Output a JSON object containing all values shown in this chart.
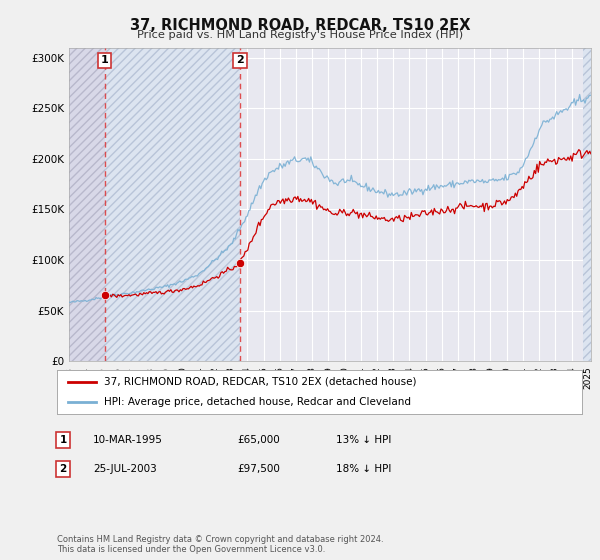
{
  "title": "37, RICHMOND ROAD, REDCAR, TS10 2EX",
  "subtitle": "Price paid vs. HM Land Registry's House Price Index (HPI)",
  "ylim": [
    0,
    310000
  ],
  "yticks": [
    0,
    50000,
    100000,
    150000,
    200000,
    250000,
    300000
  ],
  "ytick_labels": [
    "£0",
    "£50K",
    "£100K",
    "£150K",
    "£200K",
    "£250K",
    "£300K"
  ],
  "sale1_date_num": 1995.2,
  "sale1_price": 65000,
  "sale2_date_num": 2003.55,
  "sale2_price": 97500,
  "house_color": "#cc0000",
  "hpi_color": "#7ab0d4",
  "background_color": "#f0f0f0",
  "plot_bg_color": "#e8e8f0",
  "hatch_region1_color": "#d8d8e8",
  "hatch_region2_color": "#dce4f0",
  "legend_house": "37, RICHMOND ROAD, REDCAR, TS10 2EX (detached house)",
  "legend_hpi": "HPI: Average price, detached house, Redcar and Cleveland",
  "table_row1": [
    "1",
    "10-MAR-1995",
    "£65,000",
    "13% ↓ HPI"
  ],
  "table_row2": [
    "2",
    "25-JUL-2003",
    "£97,500",
    "18% ↓ HPI"
  ],
  "footer": "Contains HM Land Registry data © Crown copyright and database right 2024.\nThis data is licensed under the Open Government Licence v3.0.",
  "xmin": 1993.0,
  "xmax": 2025.2,
  "hpi_anchors": [
    [
      1993.0,
      58000
    ],
    [
      1994.0,
      60000
    ],
    [
      1995.0,
      63000
    ],
    [
      1996.0,
      66000
    ],
    [
      1997.0,
      68000
    ],
    [
      1998.0,
      71000
    ],
    [
      1999.0,
      74000
    ],
    [
      2000.0,
      79000
    ],
    [
      2001.0,
      86000
    ],
    [
      2002.0,
      100000
    ],
    [
      2003.0,
      115000
    ],
    [
      2004.0,
      145000
    ],
    [
      2004.7,
      170000
    ],
    [
      2005.3,
      185000
    ],
    [
      2006.0,
      192000
    ],
    [
      2006.8,
      198000
    ],
    [
      2007.5,
      200000
    ],
    [
      2008.0,
      196000
    ],
    [
      2008.8,
      183000
    ],
    [
      2009.5,
      175000
    ],
    [
      2010.0,
      179000
    ],
    [
      2010.8,
      175000
    ],
    [
      2011.5,
      171000
    ],
    [
      2012.0,
      168000
    ],
    [
      2012.8,
      165000
    ],
    [
      2013.5,
      165000
    ],
    [
      2014.0,
      167000
    ],
    [
      2014.8,
      170000
    ],
    [
      2015.5,
      172000
    ],
    [
      2016.0,
      173000
    ],
    [
      2016.8,
      175000
    ],
    [
      2017.5,
      177000
    ],
    [
      2018.0,
      178000
    ],
    [
      2018.8,
      177000
    ],
    [
      2019.5,
      179000
    ],
    [
      2020.0,
      181000
    ],
    [
      2020.8,
      188000
    ],
    [
      2021.5,
      210000
    ],
    [
      2022.0,
      230000
    ],
    [
      2022.5,
      238000
    ],
    [
      2023.0,
      242000
    ],
    [
      2023.5,
      248000
    ],
    [
      2024.0,
      252000
    ],
    [
      2024.5,
      258000
    ],
    [
      2025.0,
      262000
    ]
  ],
  "house_anchors": [
    [
      1995.2,
      65000
    ],
    [
      1996.0,
      64500
    ],
    [
      1997.0,
      65500
    ],
    [
      1998.0,
      67000
    ],
    [
      1999.0,
      68500
    ],
    [
      2000.0,
      71000
    ],
    [
      2001.0,
      75000
    ],
    [
      2002.0,
      83000
    ],
    [
      2003.0,
      91000
    ],
    [
      2003.55,
      97500
    ],
    [
      2004.0,
      110000
    ],
    [
      2004.5,
      128000
    ],
    [
      2005.0,
      143000
    ],
    [
      2005.5,
      155000
    ],
    [
      2006.0,
      158000
    ],
    [
      2006.5,
      160000
    ],
    [
      2007.0,
      162000
    ],
    [
      2007.5,
      160000
    ],
    [
      2008.0,
      158000
    ],
    [
      2008.5,
      153000
    ],
    [
      2009.0,
      148000
    ],
    [
      2009.5,
      145000
    ],
    [
      2010.0,
      148000
    ],
    [
      2010.5,
      147000
    ],
    [
      2011.0,
      145000
    ],
    [
      2011.5,
      143000
    ],
    [
      2012.0,
      142000
    ],
    [
      2012.5,
      140000
    ],
    [
      2013.0,
      140000
    ],
    [
      2013.5,
      141000
    ],
    [
      2014.0,
      142000
    ],
    [
      2014.5,
      144000
    ],
    [
      2015.0,
      146000
    ],
    [
      2015.5,
      148000
    ],
    [
      2016.0,
      149000
    ],
    [
      2016.5,
      150000
    ],
    [
      2017.0,
      152000
    ],
    [
      2017.5,
      153000
    ],
    [
      2018.0,
      154000
    ],
    [
      2018.5,
      153000
    ],
    [
      2019.0,
      154000
    ],
    [
      2019.5,
      156000
    ],
    [
      2020.0,
      158000
    ],
    [
      2020.5,
      163000
    ],
    [
      2021.0,
      173000
    ],
    [
      2021.5,
      183000
    ],
    [
      2022.0,
      193000
    ],
    [
      2022.5,
      197000
    ],
    [
      2023.0,
      199000
    ],
    [
      2023.5,
      200000
    ],
    [
      2024.0,
      202000
    ],
    [
      2024.5,
      205000
    ],
    [
      2025.0,
      207000
    ]
  ]
}
